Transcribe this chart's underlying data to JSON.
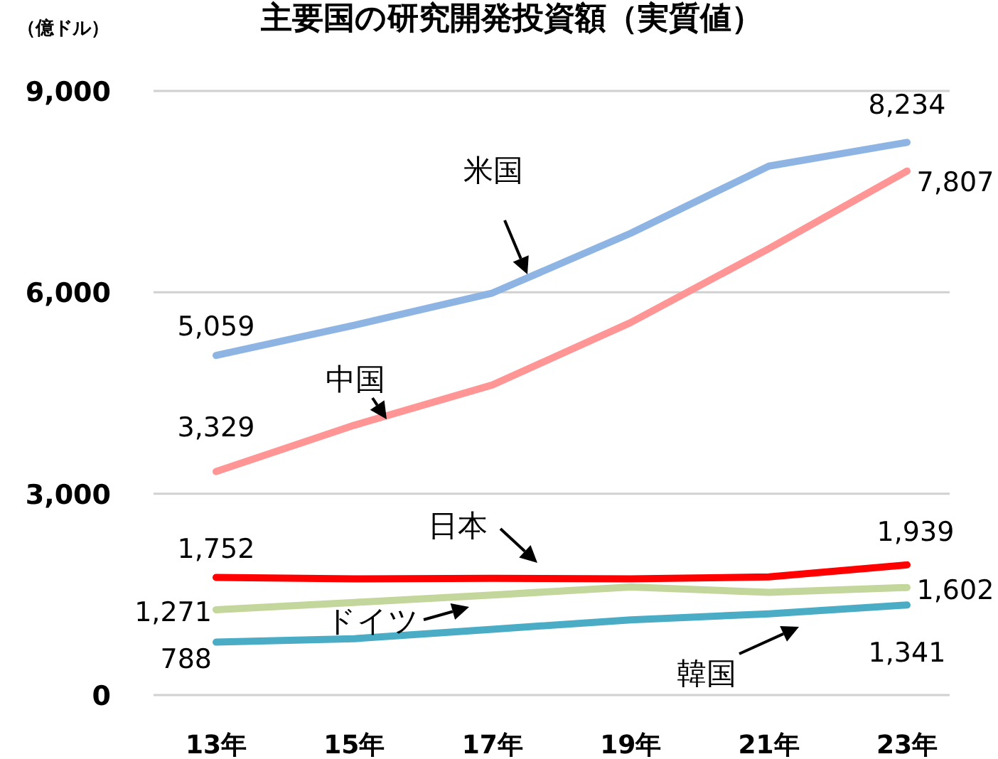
{
  "chart_data": {
    "type": "line",
    "title": "主要国の研究開発投資額（実質値）",
    "ylabel": "（億ドル）",
    "categories": [
      "13年",
      "15年",
      "17年",
      "19年",
      "21年",
      "23年"
    ],
    "ylim": [
      0,
      9000
    ],
    "yticks": [
      {
        "value": 0,
        "label": "0"
      },
      {
        "value": 3000,
        "label": "3,000"
      },
      {
        "value": 6000,
        "label": "6,000"
      },
      {
        "value": 9000,
        "label": "9,000"
      }
    ],
    "grid": "y",
    "legend": false,
    "marker": "none",
    "line_style": "solid",
    "series": [
      {
        "name": "米国",
        "color": "#8eb4e3",
        "values": [
          5059,
          5510,
          5990,
          6880,
          7880,
          8234
        ],
        "value_labels": [
          "5,059",
          null,
          null,
          null,
          null,
          "8,234"
        ]
      },
      {
        "name": "中国",
        "color": "#ff9595",
        "values": [
          3329,
          4020,
          4620,
          5550,
          6650,
          7807
        ],
        "value_labels": [
          "3,329",
          null,
          null,
          null,
          null,
          "7,807"
        ]
      },
      {
        "name": "日本",
        "color": "#ff0000",
        "values": [
          1752,
          1730,
          1740,
          1730,
          1760,
          1939
        ],
        "value_labels": [
          "1,752",
          null,
          null,
          null,
          null,
          "1,939"
        ]
      },
      {
        "name": "ドイツ",
        "color": "#c3d69b",
        "values": [
          1271,
          1380,
          1490,
          1610,
          1530,
          1602
        ],
        "value_labels": [
          "1,271",
          null,
          null,
          null,
          null,
          "1,602"
        ]
      },
      {
        "name": "韓国",
        "color": "#4bacc6",
        "values": [
          788,
          840,
          980,
          1120,
          1210,
          1341
        ],
        "value_labels": [
          "788",
          null,
          null,
          null,
          null,
          "1,341"
        ]
      }
    ]
  }
}
